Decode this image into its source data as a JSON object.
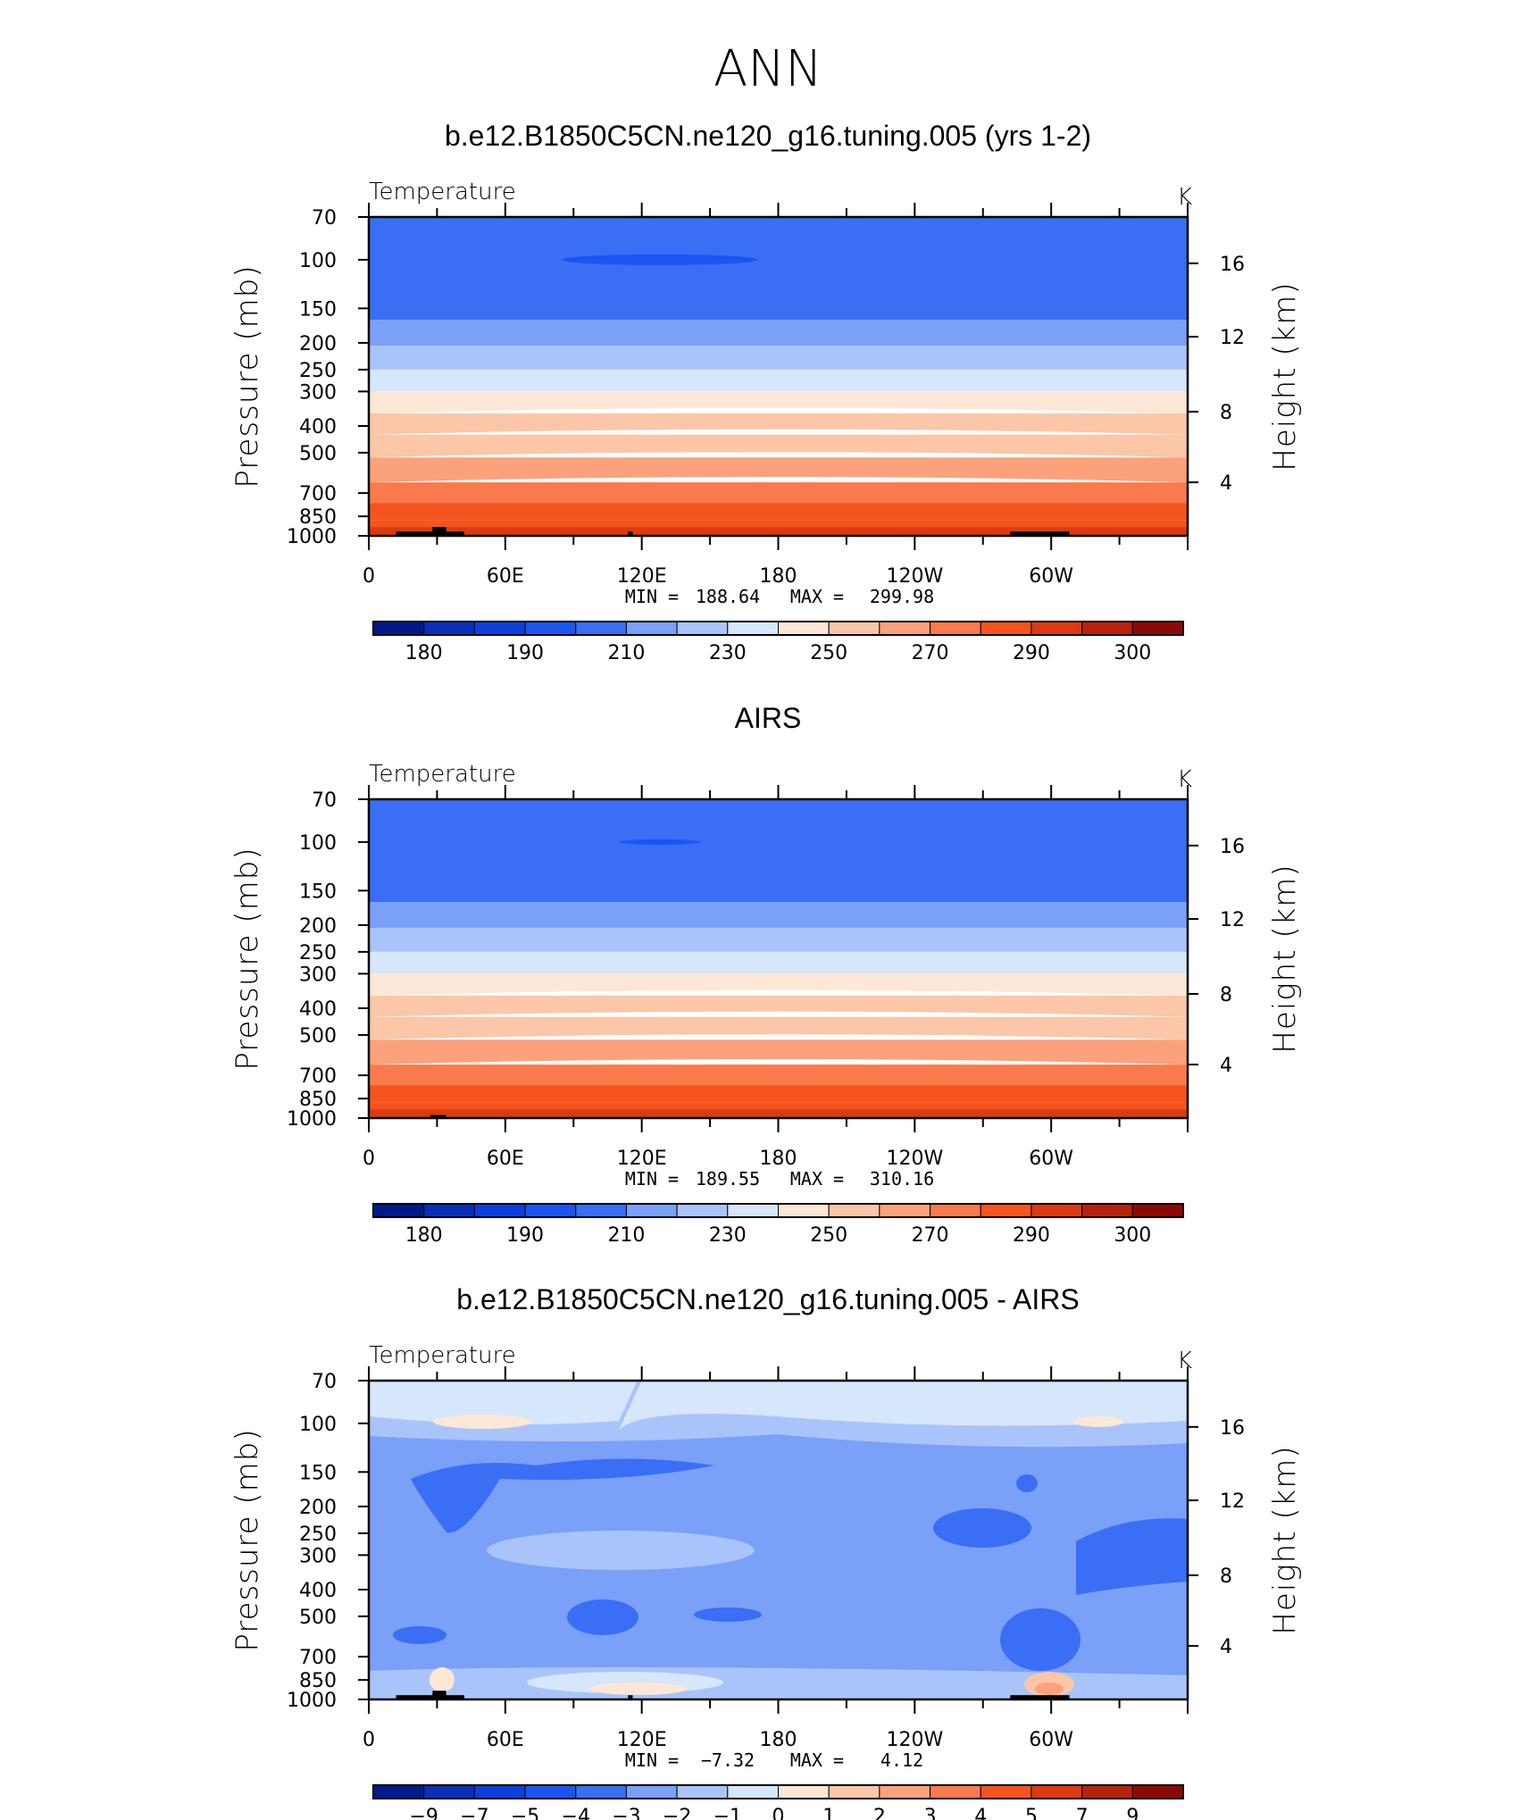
{
  "page": {
    "title": "ANN"
  },
  "chart_data": [
    {
      "type": "heatmap",
      "title": "b.e12.B1850C5CN.ne120_g16.tuning.005 (yrs 1-2)",
      "variable": "Temperature",
      "units": "K",
      "ylabel": "Pressure (mb)",
      "ylabel_right": "Height (km)",
      "yticks": [
        "70",
        "100",
        "150",
        "200",
        "250",
        "300",
        "400",
        "500",
        "700",
        "850",
        "1000"
      ],
      "ytick_values": [
        70,
        100,
        150,
        200,
        250,
        300,
        400,
        500,
        700,
        850,
        1000
      ],
      "yticks_right": [
        "16",
        "12",
        "8",
        "4"
      ],
      "xticks": [
        "0",
        "60E",
        "120E",
        "180",
        "120W",
        "60W"
      ],
      "xlim": [
        0,
        360
      ],
      "min_label": "MIN =",
      "min": "188.64",
      "max_label": "MAX =",
      "max": "299.98",
      "colorbar_labels": [
        "180",
        "190",
        "210",
        "230",
        "250",
        "270",
        "290",
        "300"
      ],
      "field": "model"
    },
    {
      "type": "heatmap",
      "title": "AIRS",
      "variable": "Temperature",
      "units": "K",
      "ylabel": "Pressure (mb)",
      "ylabel_right": "Height (km)",
      "yticks": [
        "70",
        "100",
        "150",
        "200",
        "250",
        "300",
        "400",
        "500",
        "700",
        "850",
        "1000"
      ],
      "ytick_values": [
        70,
        100,
        150,
        200,
        250,
        300,
        400,
        500,
        700,
        850,
        1000
      ],
      "yticks_right": [
        "16",
        "12",
        "8",
        "4"
      ],
      "xticks": [
        "0",
        "60E",
        "120E",
        "180",
        "120W",
        "60W"
      ],
      "xlim": [
        0,
        360
      ],
      "min_label": "MIN =",
      "min": "189.55",
      "max_label": "MAX =",
      "max": "310.16",
      "colorbar_labels": [
        "180",
        "190",
        "210",
        "230",
        "250",
        "270",
        "290",
        "300"
      ],
      "field": "obs"
    },
    {
      "type": "heatmap",
      "title": "b.e12.B1850C5CN.ne120_g16.tuning.005 - AIRS",
      "variable": "Temperature",
      "units": "K",
      "ylabel": "Pressure (mb)",
      "ylabel_right": "Height (km)",
      "yticks": [
        "70",
        "100",
        "150",
        "200",
        "250",
        "300",
        "400",
        "500",
        "700",
        "850",
        "1000"
      ],
      "ytick_values": [
        70,
        100,
        150,
        200,
        250,
        300,
        400,
        500,
        700,
        850,
        1000
      ],
      "yticks_right": [
        "16",
        "12",
        "8",
        "4"
      ],
      "xticks": [
        "0",
        "60E",
        "120E",
        "180",
        "120W",
        "60W"
      ],
      "xlim": [
        0,
        360
      ],
      "min_label": "MIN =",
      "min": "−7.32",
      "max_label": "MAX =",
      "max": "4.12",
      "colorbar_labels": [
        "−9",
        "−7",
        "−5",
        "−4",
        "−3",
        "−2",
        "−1",
        "0",
        "1",
        "2",
        "3",
        "4",
        "5",
        "7",
        "9"
      ],
      "field": "diff"
    }
  ],
  "colorbars": {
    "temperature": [
      "#001a8c",
      "#0a2fb8",
      "#0d3fdc",
      "#1a55f0",
      "#3a6ef5",
      "#7aa0f8",
      "#a9c4fa",
      "#d6e6fb",
      "#fde7d6",
      "#fcc6a8",
      "#fba27c",
      "#f97a4d",
      "#f5541f",
      "#dd3a12",
      "#b8220c",
      "#8c0a06"
    ],
    "difference": [
      "#001a8c",
      "#0a2fb8",
      "#0d3fdc",
      "#1a55f0",
      "#3a6ef5",
      "#7aa0f8",
      "#a9c4fa",
      "#d6e6fb",
      "#fde7d6",
      "#fcc6a8",
      "#fba27c",
      "#f97a4d",
      "#f5541f",
      "#dd3a12",
      "#b8220c",
      "#8c0a06"
    ]
  }
}
